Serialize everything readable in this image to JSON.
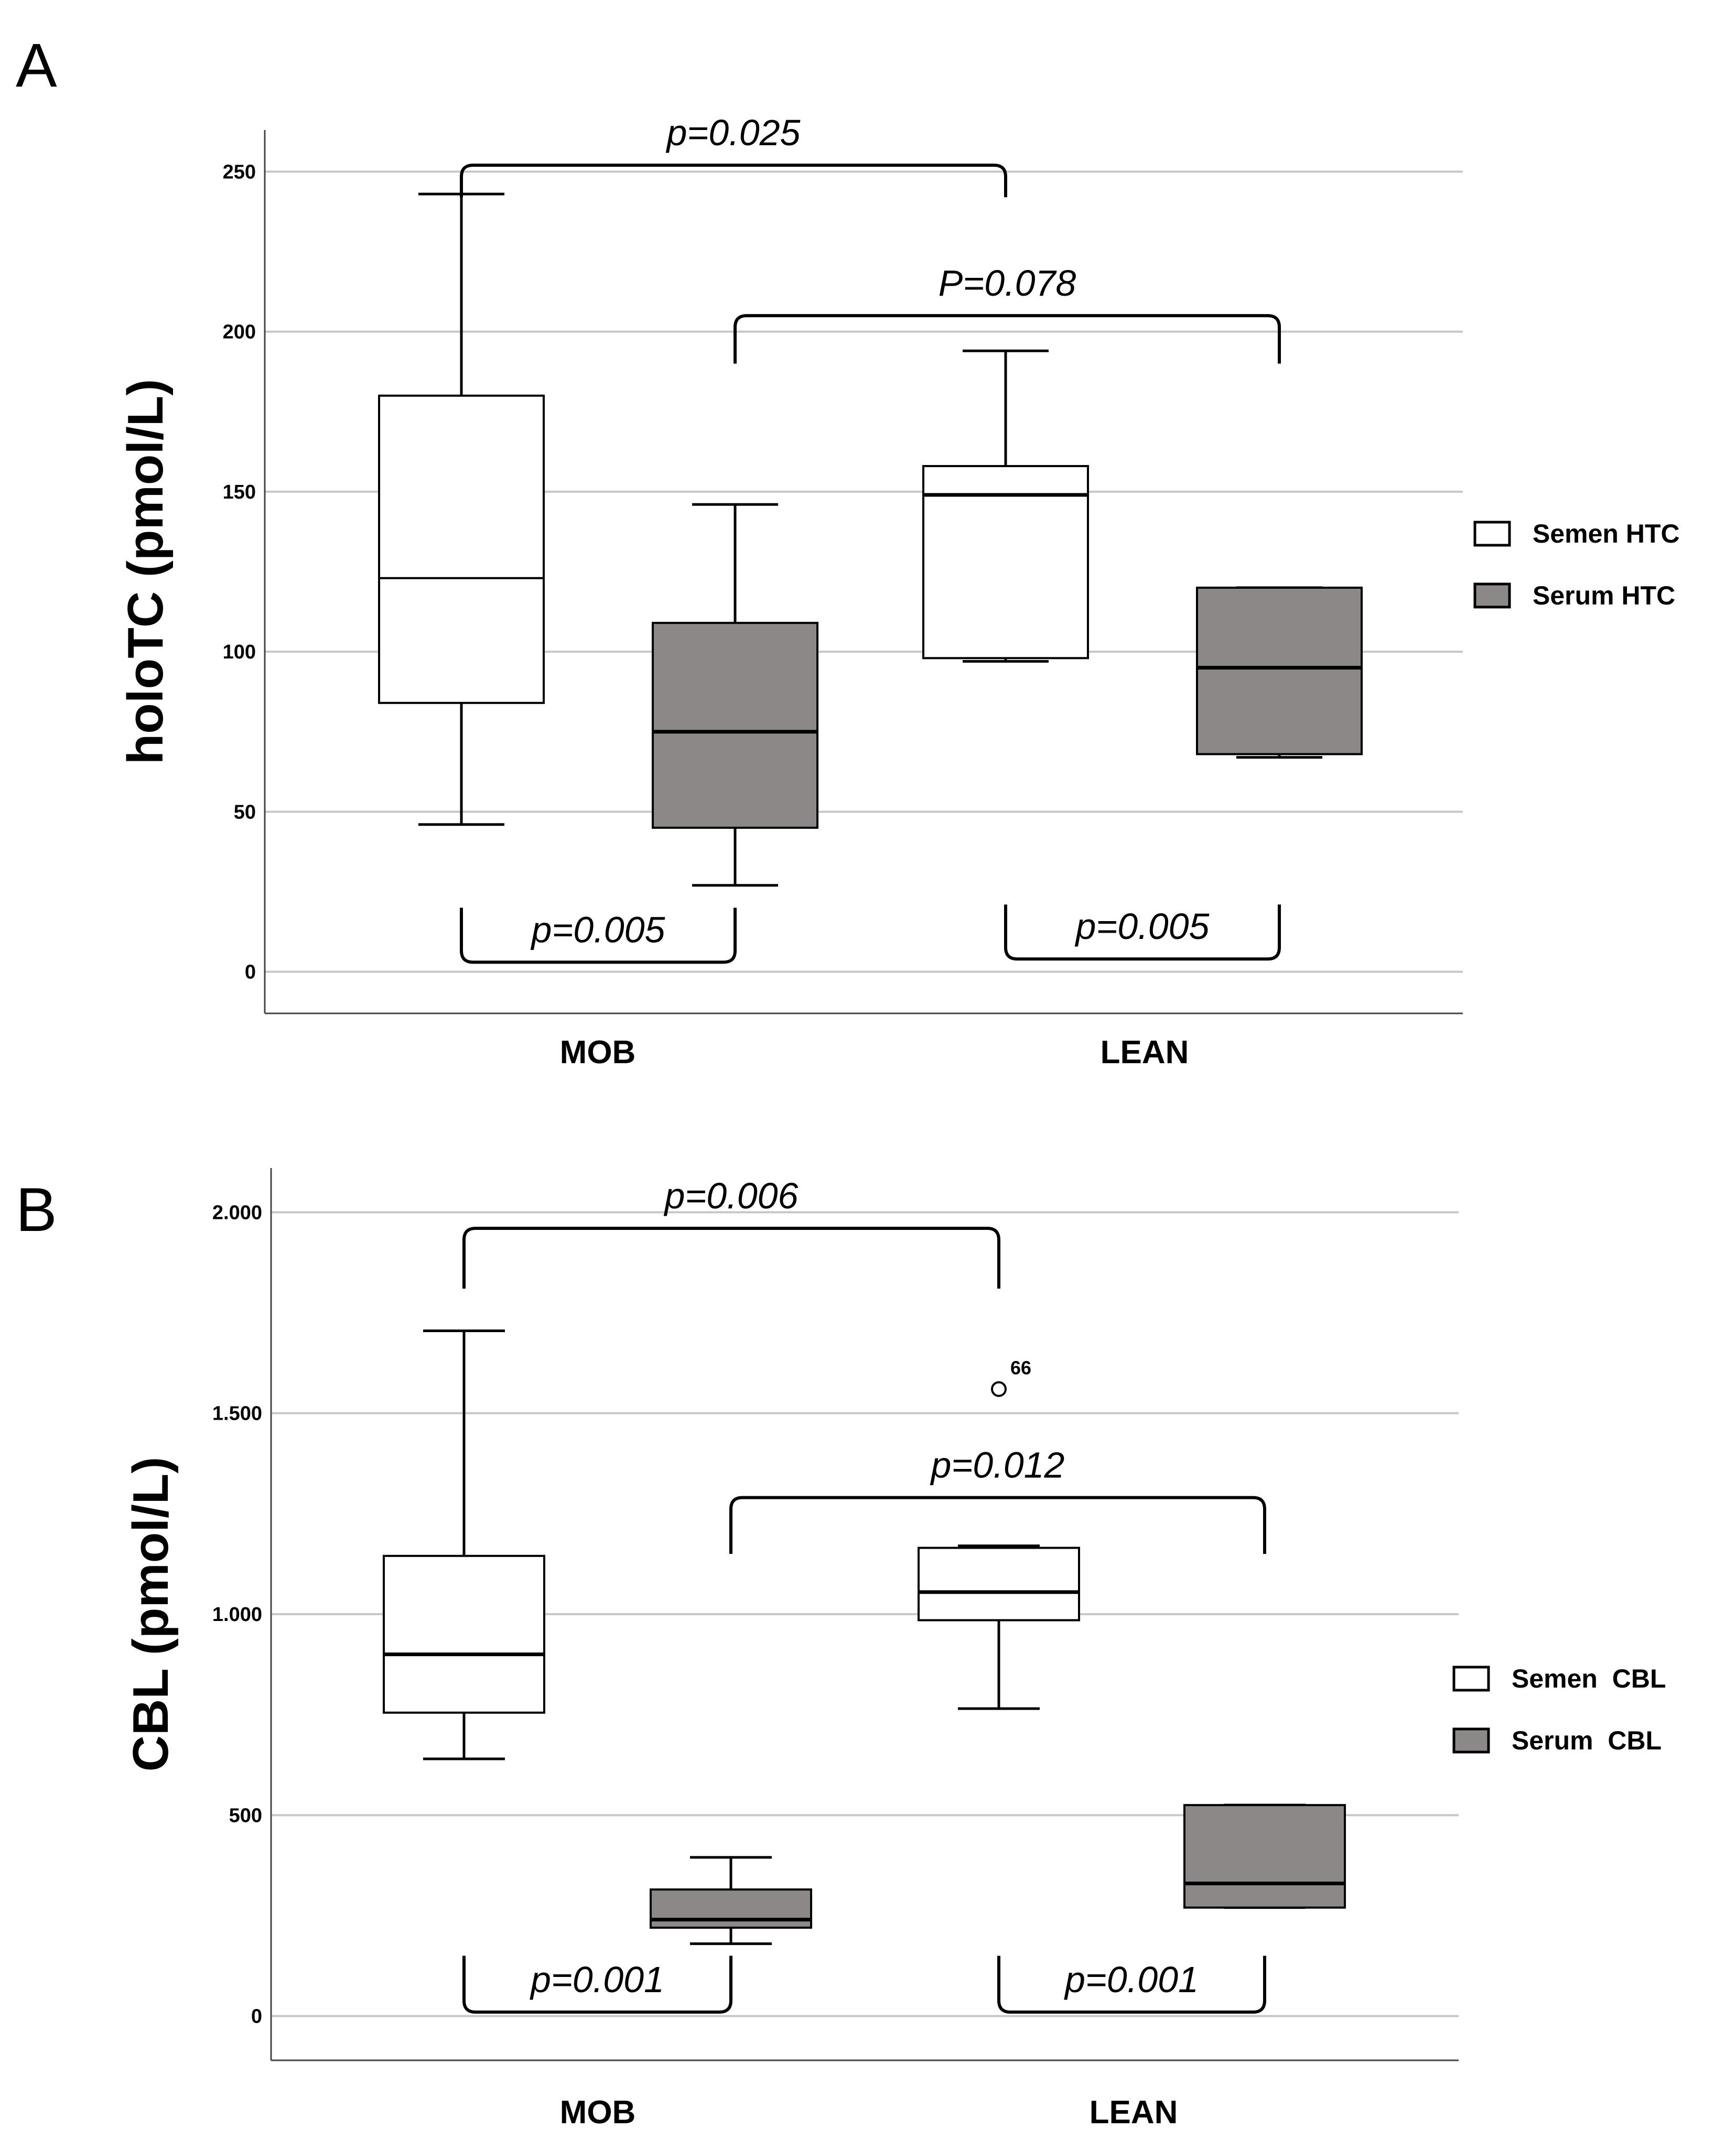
{
  "chart_data": [
    {
      "type": "boxplot",
      "panel_label": "A",
      "ylabel": "holoTC (pmol/L)",
      "ylim": [
        -13,
        263
      ],
      "yticks": [
        0,
        50,
        100,
        150,
        200,
        250
      ],
      "ytick_labels": [
        "0",
        "50",
        "100",
        "150",
        "200",
        "250"
      ],
      "grid": true,
      "categories": [
        "MOB",
        "LEAN"
      ],
      "legend": [
        {
          "label": "Semen HTC",
          "color": "#ffffff"
        },
        {
          "label": "Serum HTC",
          "color": "#8c8887"
        }
      ],
      "boxes": [
        {
          "category": "MOB",
          "series": "Semen HTC",
          "min": 46,
          "q1": 84,
          "median": 123,
          "q3": 180,
          "max": 243
        },
        {
          "category": "MOB",
          "series": "Serum HTC",
          "min": 27,
          "q1": 45,
          "median": 75,
          "q3": 109,
          "max": 146
        },
        {
          "category": "LEAN",
          "series": "Semen HTC",
          "min": 97,
          "q1": 98,
          "median": 149,
          "q3": 158,
          "max": 194
        },
        {
          "category": "LEAN",
          "series": "Serum HTC",
          "min": 67,
          "q1": 68,
          "median": 95,
          "q3": 120,
          "max": 120
        }
      ],
      "outliers": [],
      "annotations": [
        {
          "text": "p=0.025",
          "left": "MOB Semen HTC",
          "right": "LEAN Semen HTC",
          "position": "above",
          "level": 252,
          "tip": 10
        },
        {
          "text": "P=0.078",
          "left": "MOB Serum HTC",
          "right": "LEAN Serum HTC",
          "position": "above",
          "level": 205,
          "tip": 15
        },
        {
          "text": "p=0.005",
          "left": "MOB Semen HTC",
          "right": "MOB Serum HTC",
          "position": "below",
          "level": 3,
          "tip": 17
        },
        {
          "text": "p=0.005",
          "left": "LEAN Semen HTC",
          "right": "LEAN Serum HTC",
          "position": "below",
          "level": 4,
          "tip": 17
        }
      ]
    },
    {
      "type": "boxplot",
      "panel_label": "B",
      "ylabel": "CBL (pmol/L)",
      "ylim": [
        -110,
        2110
      ],
      "yticks": [
        0,
        500,
        1000,
        1500,
        2000
      ],
      "ytick_labels": [
        "0",
        "500",
        "1.000",
        "1.500",
        "2.000"
      ],
      "grid": true,
      "categories": [
        "MOB",
        "LEAN"
      ],
      "legend": [
        {
          "label": "Semen  CBL",
          "color": "#ffffff"
        },
        {
          "label": "Serum  CBL",
          "color": "#8c8887"
        }
      ],
      "boxes": [
        {
          "category": "MOB",
          "series": "Semen CBL",
          "min": 640,
          "q1": 755,
          "median": 900,
          "q3": 1145,
          "max": 1705
        },
        {
          "category": "MOB",
          "series": "Serum CBL",
          "min": 180,
          "q1": 220,
          "median": 240,
          "q3": 315,
          "max": 395
        },
        {
          "category": "LEAN",
          "series": "Semen CBL",
          "min": 765,
          "q1": 985,
          "median": 1055,
          "q3": 1165,
          "max": 1170
        },
        {
          "category": "LEAN",
          "series": "Serum CBL",
          "min": 270,
          "q1": 270,
          "median": 330,
          "q3": 525,
          "max": 525
        }
      ],
      "outliers": [
        {
          "category": "LEAN",
          "series": "Semen CBL",
          "value": 1560,
          "label": "66"
        }
      ],
      "annotations": [
        {
          "text": "p=0.006",
          "left": "MOB Semen CBL",
          "right": "LEAN Semen CBL",
          "position": "above",
          "level": 1960,
          "tip": 150
        },
        {
          "text": "p=0.012",
          "left": "MOB Serum CBL",
          "right": "LEAN Serum CBL",
          "position": "above",
          "level": 1290,
          "tip": 140
        },
        {
          "text": "p=0.001",
          "left": "MOB Semen CBL",
          "right": "MOB Serum CBL",
          "position": "below",
          "level": 10,
          "tip": 140
        },
        {
          "text": "p=0.001",
          "left": "LEAN Semen CBL",
          "right": "LEAN Serum CBL",
          "position": "below",
          "level": 10,
          "tip": 140
        }
      ]
    }
  ]
}
